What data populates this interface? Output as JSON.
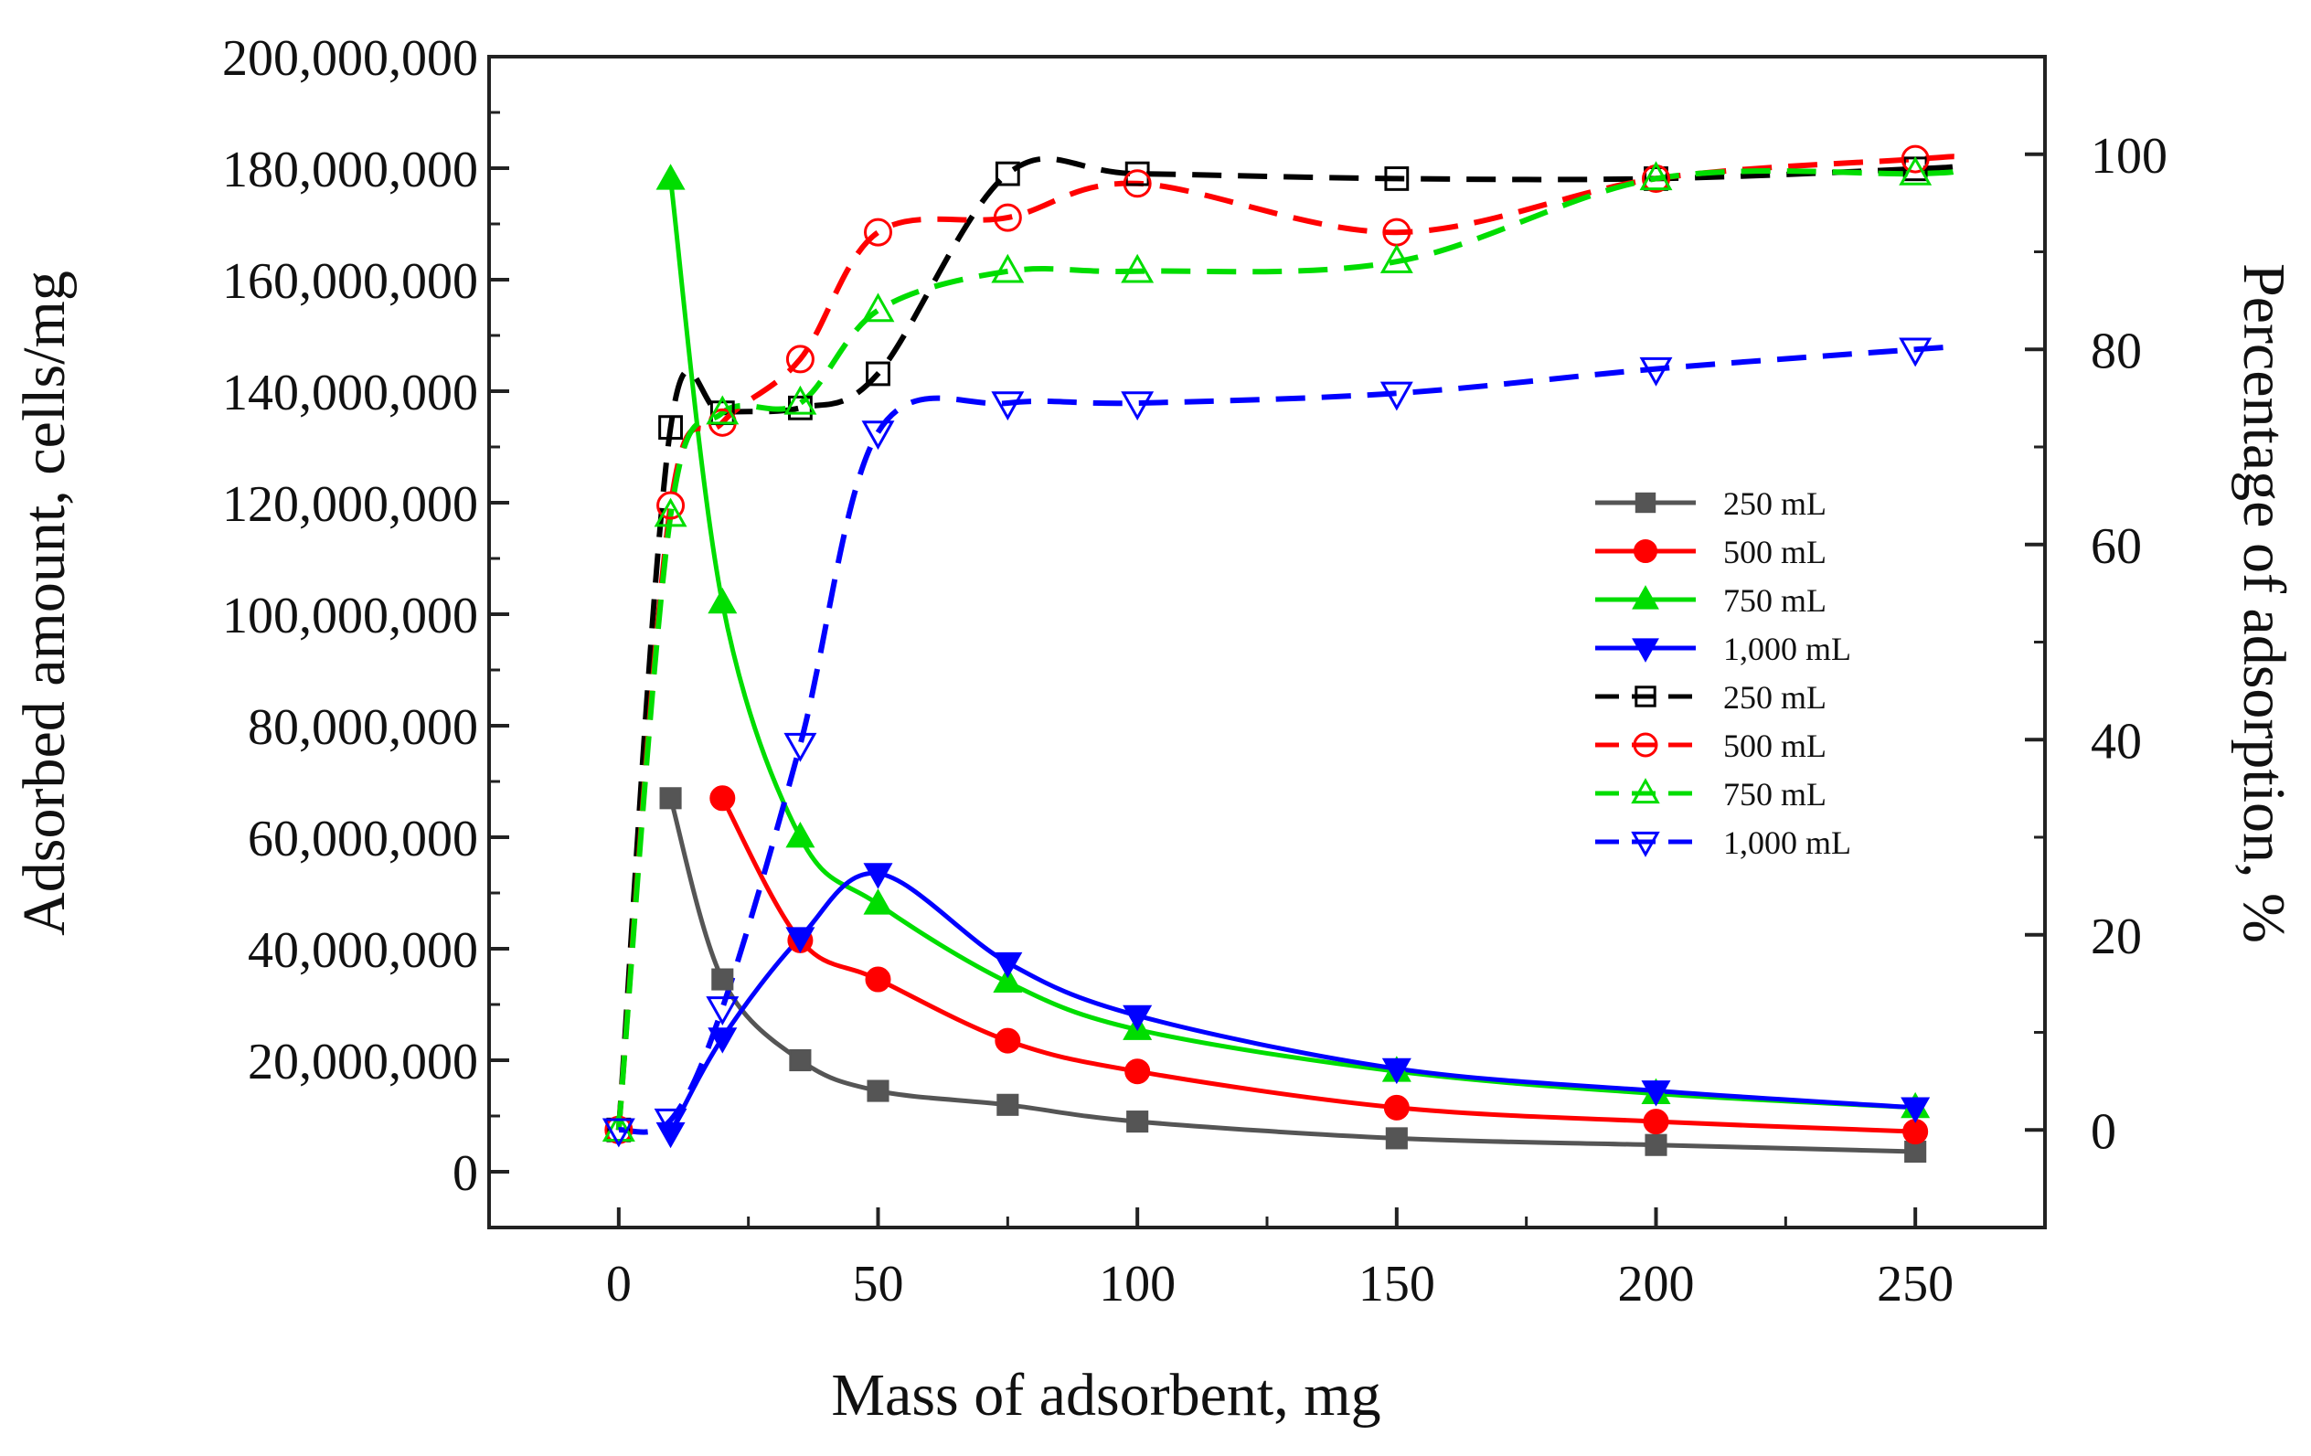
{
  "chart_data": {
    "type": "line",
    "xlabel": "Mass of adsorbent, mg",
    "ylabel_left": "Adsorbed amount, cells/mg",
    "ylabel_right": "Percentage of adsorption, %",
    "xlim": [
      -25,
      275
    ],
    "ylim_left": [
      -10000000,
      200000000
    ],
    "ylim_right": [
      -10,
      110
    ],
    "x_ticks": [
      0,
      50,
      100,
      150,
      200,
      250
    ],
    "x_tick_labels": [
      "0",
      "50",
      "100",
      "150",
      "200",
      "250"
    ],
    "y_left_ticks": [
      0,
      20000000,
      40000000,
      60000000,
      80000000,
      100000000,
      120000000,
      140000000,
      160000000,
      180000000,
      200000000
    ],
    "y_left_tick_labels": [
      "0",
      "20,000,000",
      "40,000,000",
      "60,000,000",
      "80,000,000",
      "100,000,000",
      "120,000,000",
      "140,000,000",
      "160,000,000",
      "180,000,000",
      "200,000,000"
    ],
    "y_right_ticks": [
      0,
      20,
      40,
      60,
      80,
      100
    ],
    "y_right_tick_labels": [
      "0",
      "20",
      "40",
      "60",
      "80",
      "100"
    ],
    "grid": false,
    "legend_position": "right-center",
    "series": [
      {
        "name": "250 mL",
        "axis": "left",
        "style": "solid",
        "marker": "square",
        "filled": true,
        "color": "#555555",
        "x": [
          10,
          20,
          35,
          50,
          75,
          100,
          150,
          200,
          250
        ],
        "values": [
          67000000,
          34500000,
          20000000,
          14500000,
          12000000,
          9000000,
          6000000,
          4800000,
          3600000
        ]
      },
      {
        "name": "500 mL",
        "axis": "left",
        "style": "solid",
        "marker": "circle",
        "filled": true,
        "color": "#ff0000",
        "x": [
          20,
          35,
          50,
          75,
          100,
          150,
          200,
          250
        ],
        "values": [
          67000000,
          41500000,
          34500000,
          23500000,
          18000000,
          11500000,
          9000000,
          7200000
        ]
      },
      {
        "name": "750 mL",
        "axis": "left",
        "style": "solid",
        "marker": "triangle-up",
        "filled": true,
        "color": "#00dd00",
        "x": [
          10,
          20,
          35,
          50,
          75,
          100,
          150,
          200,
          250
        ],
        "values": [
          178000000,
          102000000,
          60000000,
          48000000,
          34000000,
          25500000,
          18000000,
          14000000,
          11500000
        ]
      },
      {
        "name": "1,000 mL",
        "axis": "left",
        "style": "solid",
        "marker": "triangle-down",
        "filled": true,
        "color": "#0000ff",
        "x": [
          10,
          20,
          35,
          50,
          75,
          100,
          150,
          200,
          250
        ],
        "values": [
          7000000,
          24000000,
          42000000,
          53500000,
          37500000,
          28000000,
          18500000,
          14500000,
          11500000
        ]
      },
      {
        "name": "250 mL",
        "axis": "right",
        "style": "dashed",
        "marker": "square",
        "filled": false,
        "color": "#000000",
        "x": [
          0,
          10,
          20,
          35,
          50,
          75,
          100,
          150,
          200,
          250
        ],
        "values": [
          0,
          72,
          73.5,
          74,
          77.5,
          98,
          98,
          97.5,
          97.5,
          98.5
        ]
      },
      {
        "name": "500 mL",
        "axis": "right",
        "style": "dashed",
        "marker": "circle",
        "filled": false,
        "color": "#ff0000",
        "x": [
          0,
          10,
          20,
          35,
          50,
          75,
          100,
          150,
          200,
          250
        ],
        "values": [
          0,
          64,
          72.5,
          79,
          92,
          93.5,
          97,
          92,
          97.5,
          99.5
        ]
      },
      {
        "name": "750 mL",
        "axis": "right",
        "style": "dashed",
        "marker": "triangle-up",
        "filled": false,
        "color": "#00dd00",
        "x": [
          0,
          10,
          20,
          35,
          50,
          75,
          100,
          150,
          200,
          250
        ],
        "values": [
          0,
          63,
          73.5,
          74.5,
          84,
          88,
          88,
          89,
          97.5,
          98
        ]
      },
      {
        "name": "1,000 mL",
        "axis": "right",
        "style": "dashed",
        "marker": "triangle-down",
        "filled": false,
        "color": "#0000ff",
        "x": [
          0,
          10,
          20,
          35,
          50,
          75,
          100,
          150,
          200,
          250
        ],
        "values": [
          0,
          1,
          12.5,
          39.5,
          71.5,
          74.5,
          74.5,
          75.5,
          78,
          80
        ]
      }
    ]
  }
}
